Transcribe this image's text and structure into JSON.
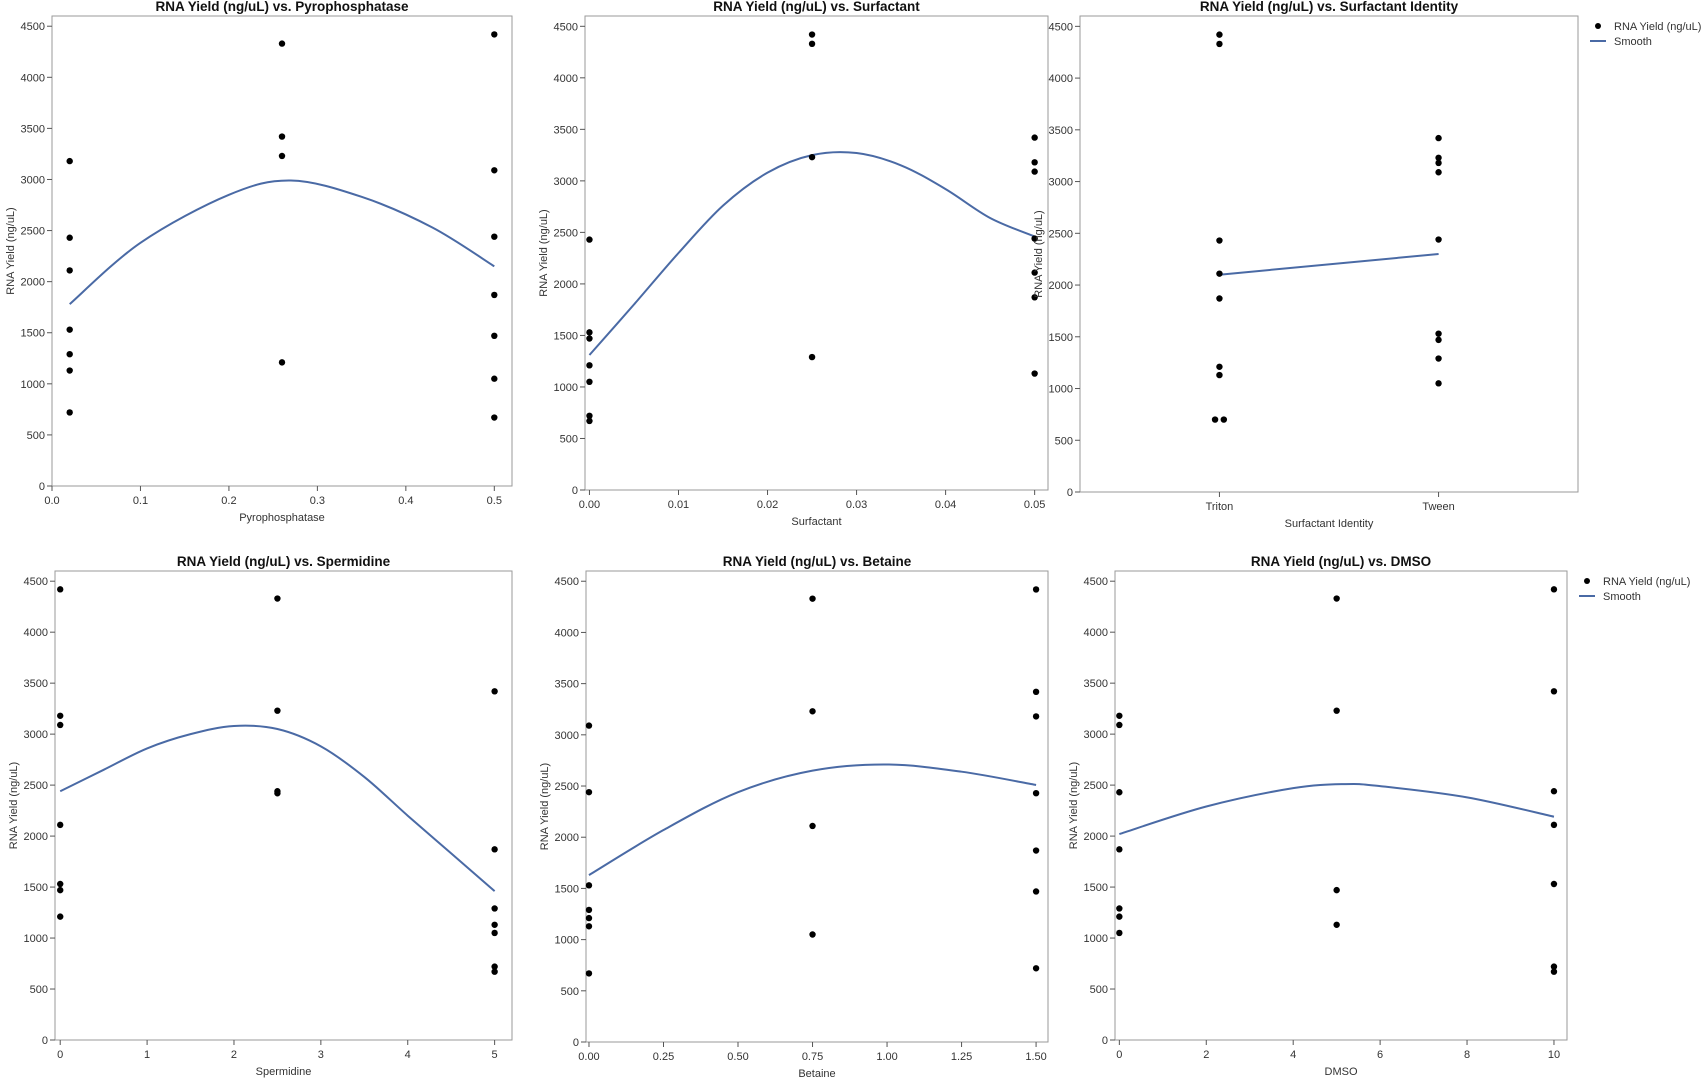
{
  "legend": {
    "points_label": "RNA Yield (ng/uL)",
    "smooth_label": "Smooth",
    "point_color": "#000000",
    "smooth_color": "#4a6aa5"
  },
  "chart_data": [
    {
      "type": "scatter",
      "title": "RNA Yield (ng/uL) vs. Pyrophosphatase",
      "xlabel": "Pyrophosphatase",
      "ylabel": "RNA Yield (ng/uL)",
      "xlim": [
        0,
        0.52
      ],
      "ylim": [
        0,
        4600
      ],
      "xticks": [
        0,
        0.1,
        0.2,
        0.3,
        0.4,
        0.5
      ],
      "xtick_labels": [
        "0.0",
        "0.1",
        "0.2",
        "0.3",
        "0.4",
        "0.5"
      ],
      "yticks": [
        0,
        500,
        1000,
        1500,
        2000,
        2500,
        3000,
        3500,
        4000,
        4500
      ],
      "points": [
        [
          0.02,
          3180
        ],
        [
          0.02,
          2430
        ],
        [
          0.02,
          2110
        ],
        [
          0.02,
          1530
        ],
        [
          0.02,
          1290
        ],
        [
          0.02,
          1130
        ],
        [
          0.02,
          720
        ],
        [
          0.26,
          4330
        ],
        [
          0.26,
          3420
        ],
        [
          0.26,
          3230
        ],
        [
          0.26,
          1210
        ],
        [
          0.5,
          4420
        ],
        [
          0.5,
          3090
        ],
        [
          0.5,
          2440
        ],
        [
          0.5,
          1870
        ],
        [
          0.5,
          1470
        ],
        [
          0.5,
          1050
        ],
        [
          0.5,
          670
        ]
      ],
      "smooth": [
        [
          0.02,
          1780
        ],
        [
          0.1,
          2380
        ],
        [
          0.2,
          2850
        ],
        [
          0.27,
          2990
        ],
        [
          0.35,
          2830
        ],
        [
          0.43,
          2530
        ],
        [
          0.5,
          2150
        ]
      ],
      "legend": false
    },
    {
      "type": "scatter",
      "title": "RNA Yield (ng/uL) vs. Surfactant",
      "xlabel": "Surfactant",
      "ylabel": "RNA Yield (ng/uL)",
      "xlim": [
        -0.0005,
        0.0515
      ],
      "ylim": [
        0,
        4600
      ],
      "xticks": [
        0,
        0.01,
        0.02,
        0.03,
        0.04,
        0.05
      ],
      "xtick_labels": [
        "0.00",
        "0.01",
        "0.02",
        "0.03",
        "0.04",
        "0.05"
      ],
      "yticks": [
        0,
        500,
        1000,
        1500,
        2000,
        2500,
        3000,
        3500,
        4000,
        4500
      ],
      "points": [
        [
          0,
          2430
        ],
        [
          0,
          1530
        ],
        [
          0,
          1470
        ],
        [
          0,
          1210
        ],
        [
          0,
          1050
        ],
        [
          0,
          720
        ],
        [
          0,
          670
        ],
        [
          0.025,
          4420
        ],
        [
          0.025,
          4330
        ],
        [
          0.025,
          3230
        ],
        [
          0.025,
          1290
        ],
        [
          0.05,
          3420
        ],
        [
          0.05,
          3180
        ],
        [
          0.05,
          3090
        ],
        [
          0.05,
          2440
        ],
        [
          0.05,
          2110
        ],
        [
          0.05,
          1870
        ],
        [
          0.05,
          1130
        ]
      ],
      "smooth": [
        [
          0,
          1310
        ],
        [
          0.005,
          1800
        ],
        [
          0.01,
          2300
        ],
        [
          0.015,
          2760
        ],
        [
          0.02,
          3080
        ],
        [
          0.025,
          3250
        ],
        [
          0.03,
          3270
        ],
        [
          0.035,
          3150
        ],
        [
          0.04,
          2920
        ],
        [
          0.045,
          2640
        ],
        [
          0.05,
          2460
        ]
      ],
      "legend": false
    },
    {
      "type": "scatter",
      "title": "RNA Yield (ng/uL) vs. Surfactant Identity",
      "xlabel": "Surfactant Identity",
      "ylabel": "RNA Yield (ng/uL)",
      "categorical": true,
      "categories": [
        "Triton",
        "Tween"
      ],
      "ylim": [
        0,
        4600
      ],
      "yticks": [
        0,
        500,
        1000,
        1500,
        2000,
        2500,
        3000,
        3500,
        4000,
        4500
      ],
      "points": [
        [
          0,
          4420
        ],
        [
          0,
          4330
        ],
        [
          0,
          2430
        ],
        [
          0,
          2110
        ],
        [
          0,
          1870
        ],
        [
          0,
          1210
        ],
        [
          0,
          1130
        ],
        [
          -0.02,
          700
        ],
        [
          0.02,
          700
        ],
        [
          1,
          3420
        ],
        [
          1,
          3230
        ],
        [
          1,
          3180
        ],
        [
          1,
          3090
        ],
        [
          1,
          2440
        ],
        [
          1,
          1530
        ],
        [
          1,
          1470
        ],
        [
          1,
          1290
        ],
        [
          1,
          1050
        ]
      ],
      "smooth": [
        [
          0,
          2100
        ],
        [
          1,
          2300
        ]
      ],
      "legend": true
    },
    {
      "type": "scatter",
      "title": "RNA Yield (ng/uL) vs. Spermidine",
      "xlabel": "Spermidine",
      "ylabel": "RNA Yield (ng/uL)",
      "xlim": [
        -0.06,
        5.2
      ],
      "ylim": [
        0,
        4600
      ],
      "xticks": [
        0,
        1,
        2,
        3,
        4,
        5
      ],
      "xtick_labels": [
        "0",
        "1",
        "2",
        "3",
        "4",
        "5"
      ],
      "yticks": [
        0,
        500,
        1000,
        1500,
        2000,
        2500,
        3000,
        3500,
        4000,
        4500
      ],
      "points": [
        [
          0,
          4420
        ],
        [
          0,
          3180
        ],
        [
          0,
          3090
        ],
        [
          0,
          2110
        ],
        [
          0,
          1530
        ],
        [
          0,
          1470
        ],
        [
          0,
          1210
        ],
        [
          2.5,
          4330
        ],
        [
          2.5,
          3230
        ],
        [
          2.5,
          2440
        ],
        [
          2.5,
          2420
        ],
        [
          5,
          3420
        ],
        [
          5,
          1870
        ],
        [
          5,
          1290
        ],
        [
          5,
          1130
        ],
        [
          5,
          1050
        ],
        [
          5,
          720
        ],
        [
          5,
          670
        ]
      ],
      "smooth": [
        [
          0,
          2440
        ],
        [
          0.5,
          2650
        ],
        [
          1,
          2860
        ],
        [
          1.5,
          3000
        ],
        [
          2,
          3080
        ],
        [
          2.5,
          3050
        ],
        [
          3,
          2880
        ],
        [
          3.5,
          2580
        ],
        [
          4,
          2200
        ],
        [
          4.5,
          1830
        ],
        [
          5,
          1460
        ]
      ],
      "legend": false
    },
    {
      "type": "scatter",
      "title": "RNA Yield (ng/uL) vs. Betaine",
      "xlabel": "Betaine",
      "ylabel": "RNA Yield (ng/uL)",
      "xlim": [
        -0.01,
        1.54
      ],
      "ylim": [
        0,
        4600
      ],
      "xticks": [
        0,
        0.25,
        0.5,
        0.75,
        1.0,
        1.25,
        1.5
      ],
      "xtick_labels": [
        "0.00",
        "0.25",
        "0.50",
        "0.75",
        "1.00",
        "1.25",
        "1.50"
      ],
      "yticks": [
        0,
        500,
        1000,
        1500,
        2000,
        2500,
        3000,
        3500,
        4000,
        4500
      ],
      "points": [
        [
          0,
          3090
        ],
        [
          0,
          2440
        ],
        [
          0,
          1530
        ],
        [
          0,
          1290
        ],
        [
          0,
          1210
        ],
        [
          0,
          1130
        ],
        [
          0,
          670
        ],
        [
          0.75,
          4330
        ],
        [
          0.75,
          3230
        ],
        [
          0.75,
          2110
        ],
        [
          0.75,
          1050
        ],
        [
          1.5,
          4420
        ],
        [
          1.5,
          3420
        ],
        [
          1.5,
          3180
        ],
        [
          1.5,
          2430
        ],
        [
          1.5,
          1870
        ],
        [
          1.5,
          1470
        ],
        [
          1.5,
          720
        ]
      ],
      "smooth": [
        [
          0,
          1630
        ],
        [
          0.25,
          2070
        ],
        [
          0.5,
          2440
        ],
        [
          0.75,
          2650
        ],
        [
          1.0,
          2710
        ],
        [
          1.25,
          2640
        ],
        [
          1.5,
          2510
        ]
      ],
      "legend": false
    },
    {
      "type": "scatter",
      "title": "RNA Yield (ng/uL) vs. DMSO",
      "xlabel": "DMSO",
      "ylabel": "RNA Yield (ng/uL)",
      "xlim": [
        -0.1,
        10.3
      ],
      "ylim": [
        0,
        4600
      ],
      "xticks": [
        0,
        2,
        4,
        6,
        8,
        10
      ],
      "xtick_labels": [
        "0",
        "2",
        "4",
        "6",
        "8",
        "10"
      ],
      "yticks": [
        0,
        500,
        1000,
        1500,
        2000,
        2500,
        3000,
        3500,
        4000,
        4500
      ],
      "points": [
        [
          0,
          3180
        ],
        [
          0,
          3090
        ],
        [
          0,
          2430
        ],
        [
          0,
          1870
        ],
        [
          0,
          1290
        ],
        [
          0,
          1210
        ],
        [
          0,
          1050
        ],
        [
          5,
          4330
        ],
        [
          5,
          3230
        ],
        [
          5,
          1470
        ],
        [
          5,
          1130
        ],
        [
          10,
          4420
        ],
        [
          10,
          3420
        ],
        [
          10,
          2440
        ],
        [
          10,
          2110
        ],
        [
          10,
          1530
        ],
        [
          10,
          720
        ],
        [
          10,
          670
        ]
      ],
      "smooth": [
        [
          0,
          2020
        ],
        [
          2,
          2290
        ],
        [
          4,
          2470
        ],
        [
          5.2,
          2510
        ],
        [
          6,
          2490
        ],
        [
          8,
          2380
        ],
        [
          10,
          2190
        ]
      ],
      "legend": true
    }
  ]
}
